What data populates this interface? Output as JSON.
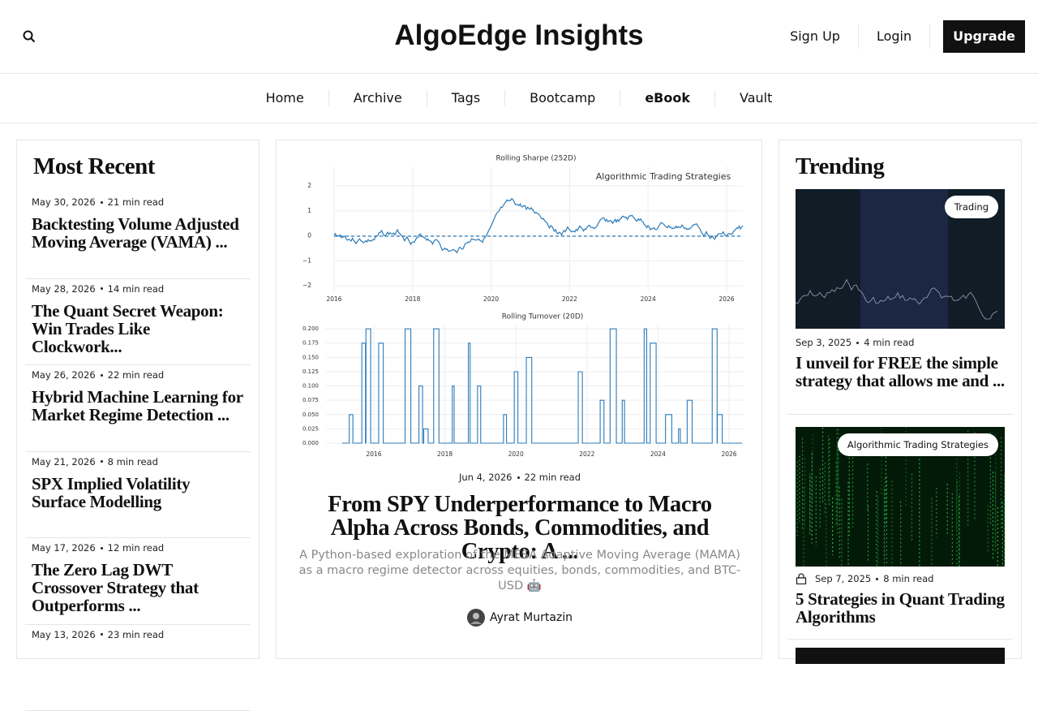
{
  "header": {
    "title": "AlgoEdge Insights",
    "actions": [
      "Sign Up",
      "Login",
      "Upgrade"
    ]
  },
  "nav": [
    "Home",
    "Archive",
    "Tags",
    "Bootcamp",
    "eBook",
    "Vault"
  ],
  "most_recent": {
    "title": "Most Recent",
    "posts": [
      {
        "date": "May 30, 2026",
        "read_time": "21 min read",
        "title": "Backtesting Volume Adjusted Moving Average (VAMA) ..."
      },
      {
        "date": "May 28, 2026",
        "read_time": "14 min read",
        "title": "The Quant Secret Weapon: Win Trades Like Clockwork..."
      },
      {
        "date": "May 26, 2026",
        "read_time": "22 min read",
        "title": "Hybrid Machine Learning for Market Regime Detection ..."
      },
      {
        "date": "May 21, 2026",
        "read_time": "8 min read",
        "title": "SPX Implied Volatility Surface Modelling"
      },
      {
        "date": "May 17, 2026",
        "read_time": "12 min read",
        "title": "The Zero Lag DWT Crossover Strategy that Outperforms ..."
      },
      {
        "date": "May 13, 2026",
        "read_time": "23 min read"
      }
    ]
  },
  "featured": {
    "image": {
      "top_title": "Rolling Sharpe (252D)",
      "watermark": "Algorithmic Trading Strategies",
      "top_yticks": [
        "2",
        "1",
        "0",
        "−1",
        "−2"
      ],
      "top_xticks": [
        "2016",
        "2018",
        "2020",
        "2022",
        "2024",
        "2026"
      ],
      "bottom_title": "Rolling Turnover (20D)",
      "bottom_yticks": [
        "0.200",
        "0.175",
        "0.150",
        "0.125",
        "0.100",
        "0.075",
        "0.050",
        "0.025",
        "0.000"
      ],
      "bottom_xticks": [
        "2016",
        "2018",
        "2020",
        "2022",
        "2024",
        "2026"
      ]
    },
    "date": "Jun 4, 2026",
    "read_time": "22 min read",
    "title": "From SPY Underperformance to Macro Alpha Across Bonds, Commodities, and Crypto: A ...",
    "subtitle": "A Python-based exploration of the MESA Adaptive Moving Average (MAMA) as a macro regime detector across equities, bonds, commodities, and BTC-USD 🤖",
    "author": "Ayrat Murtazin"
  },
  "trending": {
    "title": "Trending",
    "posts": [
      {
        "tag": "Trading",
        "date": "Sep 3, 2025",
        "read_time": "4 min read",
        "title": "I unveil for FREE the simple strategy that allows me and ..."
      },
      {
        "tag": "Algorithmic Trading Strategies",
        "date": "Sep 7, 2025",
        "read_time": "8 min read",
        "title": "5 Strategies in Quant Trading Algorithms"
      }
    ]
  }
}
